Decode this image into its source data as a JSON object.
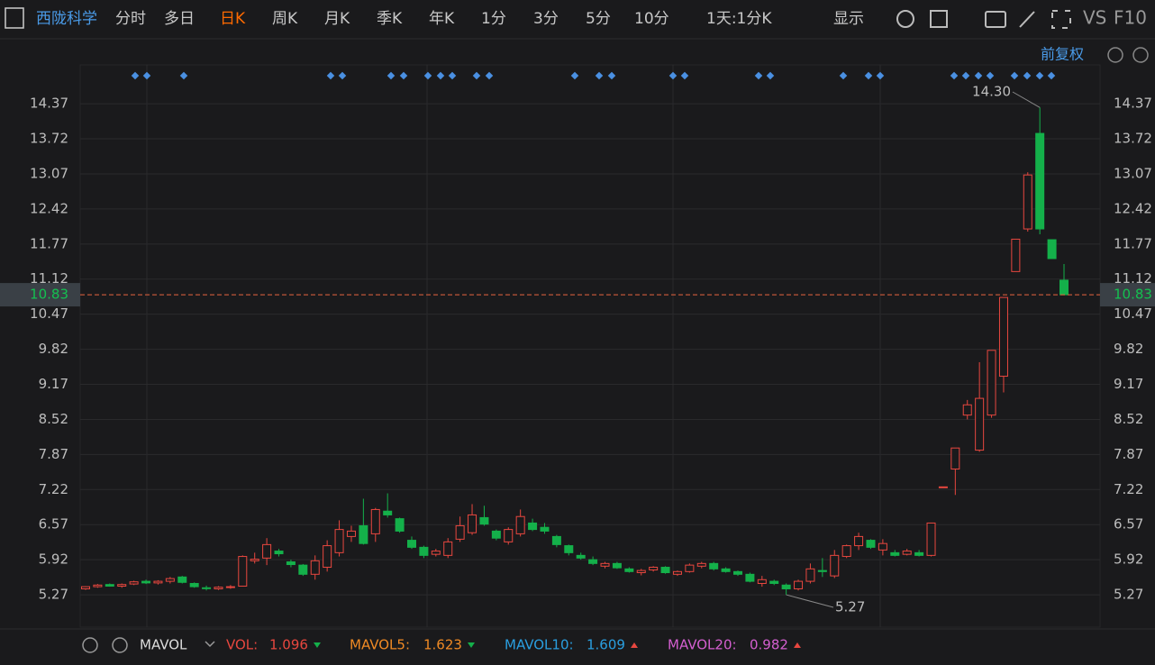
{
  "toolbar": {
    "stock": "西陇科学",
    "tabs": [
      "分时",
      "多日",
      "日K",
      "周K",
      "月K",
      "季K",
      "年K",
      "1分",
      "3分",
      "5分",
      "10分"
    ],
    "active_tab": "日K",
    "period": "1天:1分K",
    "display": "显示",
    "vs": "VS",
    "f10": "F10",
    "adjust": "前复权"
  },
  "chart_data": {
    "type": "candlestick",
    "open": [
      5.38,
      5.42,
      5.46,
      5.43,
      5.47,
      5.52,
      5.49,
      5.52,
      5.6,
      5.48,
      5.4,
      5.38,
      5.41,
      5.43,
      5.9,
      5.95,
      6.08,
      5.88,
      5.82,
      5.65,
      5.78,
      6.05,
      6.35,
      6.55,
      6.4,
      6.82,
      6.68,
      6.28,
      6.15,
      6.02,
      6.0,
      6.3,
      6.42,
      6.7,
      6.45,
      6.25,
      6.4,
      6.6,
      6.52,
      6.35,
      6.18,
      6.0,
      5.92,
      5.8,
      5.85,
      5.75,
      5.68,
      5.73,
      5.78,
      5.65,
      5.7,
      5.8,
      5.85,
      5.75,
      5.7,
      5.65,
      5.48,
      5.52,
      5.45,
      5.38,
      5.52,
      5.72,
      5.62,
      5.98,
      6.18,
      6.28,
      6.1,
      6.05,
      6.02,
      6.05,
      6.0,
      7.26,
      7.6,
      8.6,
      7.95,
      8.6,
      9.32,
      11.26,
      12.05,
      13.82,
      11.85,
      11.1
    ],
    "high": [
      5.43,
      5.47,
      5.48,
      5.48,
      5.53,
      5.55,
      5.54,
      5.6,
      5.62,
      5.5,
      5.44,
      5.43,
      5.45,
      6.0,
      6.05,
      6.32,
      6.12,
      5.92,
      5.84,
      6.0,
      6.28,
      6.65,
      6.55,
      7.05,
      6.88,
      7.15,
      6.7,
      6.35,
      6.18,
      6.12,
      6.32,
      6.72,
      6.95,
      6.92,
      6.48,
      6.52,
      6.85,
      6.68,
      6.6,
      6.38,
      6.2,
      6.05,
      5.98,
      5.88,
      5.88,
      5.78,
      5.75,
      5.8,
      5.8,
      5.72,
      5.85,
      5.88,
      5.88,
      5.78,
      5.72,
      5.68,
      5.62,
      5.55,
      5.48,
      5.55,
      5.85,
      5.95,
      6.1,
      6.2,
      6.42,
      6.3,
      6.3,
      6.1,
      6.12,
      6.1,
      6.6,
      7.27,
      7.99,
      8.88,
      9.58,
      9.8,
      10.78,
      11.86,
      13.1,
      14.3,
      11.85,
      11.4
    ],
    "low": [
      5.36,
      5.4,
      5.42,
      5.4,
      5.45,
      5.47,
      5.46,
      5.48,
      5.48,
      5.4,
      5.35,
      5.36,
      5.38,
      5.43,
      5.85,
      5.82,
      5.98,
      5.78,
      5.62,
      5.55,
      5.7,
      5.98,
      6.25,
      6.2,
      6.25,
      6.7,
      6.42,
      6.12,
      5.95,
      5.98,
      5.95,
      6.25,
      6.38,
      6.55,
      6.28,
      6.2,
      6.35,
      6.45,
      6.4,
      6.15,
      6.0,
      5.92,
      5.82,
      5.76,
      5.75,
      5.68,
      5.63,
      5.7,
      5.66,
      5.62,
      5.68,
      5.76,
      5.72,
      5.68,
      5.62,
      5.5,
      5.42,
      5.45,
      5.27,
      5.35,
      5.48,
      5.6,
      5.58,
      5.95,
      6.1,
      6.12,
      6.0,
      5.98,
      6.0,
      5.98,
      5.98,
      7.26,
      7.12,
      8.52,
      7.92,
      8.55,
      9.02,
      11.26,
      12.0,
      11.95,
      11.5,
      10.83
    ],
    "close": [
      5.42,
      5.45,
      5.43,
      5.46,
      5.51,
      5.49,
      5.52,
      5.57,
      5.5,
      5.42,
      5.39,
      5.41,
      5.42,
      5.98,
      5.93,
      6.2,
      6.03,
      5.83,
      5.65,
      5.9,
      6.18,
      6.48,
      6.45,
      6.22,
      6.85,
      6.75,
      6.45,
      6.15,
      6.0,
      6.08,
      6.25,
      6.55,
      6.75,
      6.58,
      6.32,
      6.48,
      6.72,
      6.48,
      6.45,
      6.2,
      6.05,
      5.95,
      5.85,
      5.85,
      5.77,
      5.7,
      5.72,
      5.78,
      5.68,
      5.7,
      5.82,
      5.85,
      5.75,
      5.7,
      5.65,
      5.52,
      5.55,
      5.48,
      5.38,
      5.52,
      5.75,
      5.7,
      6.0,
      6.18,
      6.35,
      6.15,
      6.22,
      6.0,
      6.08,
      6.0,
      6.6,
      7.27,
      7.99,
      8.79,
      8.91,
      9.8,
      10.78,
      11.86,
      13.05,
      12.05,
      11.5,
      10.83
    ],
    "up_color": "#e8473f",
    "down_color": "#14b04a",
    "ylim": [
      4.67,
      15.09
    ],
    "yticks": [
      5.27,
      5.92,
      6.57,
      7.22,
      7.87,
      8.52,
      9.17,
      9.82,
      10.47,
      11.12,
      11.77,
      12.42,
      13.07,
      13.72,
      14.37
    ],
    "last_price": 10.83,
    "max_label": "14.30",
    "min_label": "5.27"
  },
  "indicator_bar": {
    "name": "MAVOL",
    "items": [
      {
        "label": "VOL:",
        "value": "1.096",
        "color": "#e8473f"
      },
      {
        "label": "MAVOL5:",
        "value": "1.623",
        "color": "#f08a24"
      },
      {
        "label": "MAVOL10:",
        "value": "1.609",
        "color": "#2a9fe0"
      },
      {
        "label": "MAVOL20:",
        "value": "0.982",
        "color": "#d45fd0"
      }
    ]
  }
}
